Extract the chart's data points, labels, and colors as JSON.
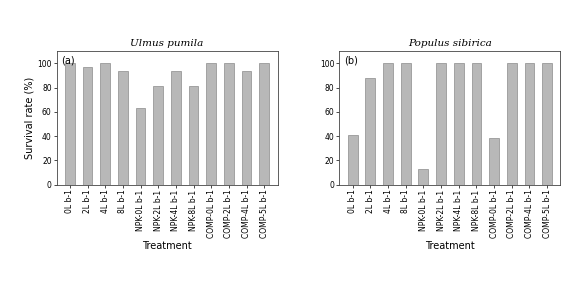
{
  "title_a": "Ulmus pumila",
  "title_b": "Populus sibirica",
  "label_a": "(a)",
  "label_b": "(b)",
  "categories": [
    "0L b-1",
    "2L b-1",
    "4L b-1",
    "8L b-1",
    "NPK-0L b-1",
    "NPK-2L b-1",
    "NPK-4L b-1",
    "NPK-8L b-1",
    "COMP-0L b-1",
    "COMP-2L b-1",
    "COMP-4L b-1",
    "COMP-5L b-1"
  ],
  "values_a": [
    100,
    97,
    100,
    94,
    63,
    81,
    94,
    81,
    100,
    100,
    94,
    100
  ],
  "values_b": [
    41,
    88,
    100,
    100,
    13,
    100,
    100,
    100,
    38,
    100,
    100,
    100
  ],
  "bar_color": "#b8b8b8",
  "bar_edge_color": "#777777",
  "ylabel": "Survival rate (%)",
  "xlabel": "Treatment",
  "ylim": [
    0,
    110
  ],
  "yticks": [
    0,
    20,
    40,
    60,
    80,
    100
  ],
  "bg_color": "#ffffff",
  "title_fontsize": 7.5,
  "label_fontsize": 7,
  "tick_fontsize": 5.5,
  "axis_label_fontsize": 7,
  "bar_width": 0.55
}
